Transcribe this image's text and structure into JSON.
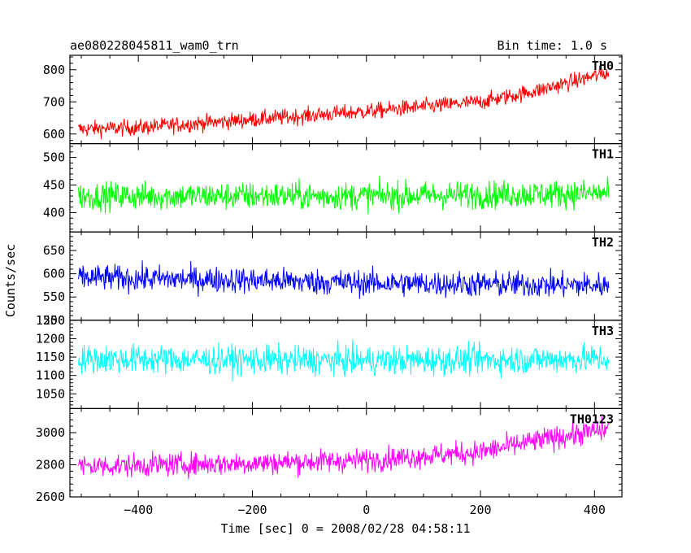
{
  "header": {
    "title": "ae080228045811_wam0_trn",
    "bin_time": "Bin time: 1.0 s"
  },
  "chart_data": {
    "type": "line",
    "xlabel": "Time [sec] 0 = 2008/02/28 04:58:11",
    "ylabel": "Counts/sec",
    "xlim": [
      -520,
      448
    ],
    "x_ticks": [
      -400,
      -200,
      0,
      200,
      400
    ],
    "x_start": -505,
    "x_end": 425,
    "bin_time": 1.0,
    "grid": false,
    "panels": [
      {
        "name": "TH0",
        "color": "#ff0000",
        "ylim": [
          570,
          845
        ],
        "yticks": [
          600,
          700,
          800
        ],
        "trend": [
          [
            -505,
            615
          ],
          [
            -400,
            620
          ],
          [
            -200,
            645
          ],
          [
            0,
            670
          ],
          [
            200,
            700
          ],
          [
            300,
            735
          ],
          [
            420,
            790
          ]
        ],
        "noise_amplitude": 45
      },
      {
        "name": "TH1",
        "color": "#00ff00",
        "ylim": [
          365,
          525
        ],
        "yticks": [
          400,
          450,
          500
        ],
        "trend": [
          [
            -505,
            430
          ],
          [
            0,
            430
          ],
          [
            420,
            435
          ]
        ],
        "noise_amplitude": 45
      },
      {
        "name": "TH2",
        "color": "#0000ff",
        "ylim": [
          500,
          690
        ],
        "yticks": [
          500,
          550,
          600,
          650
        ],
        "trend": [
          [
            -505,
            592
          ],
          [
            -200,
            586
          ],
          [
            0,
            580
          ],
          [
            420,
            575
          ]
        ],
        "noise_amplitude": 50
      },
      {
        "name": "TH3",
        "color": "#00ffff",
        "ylim": [
          1010,
          1250
        ],
        "yticks": [
          1050,
          1100,
          1150,
          1200,
          1250
        ],
        "trend": [
          [
            -505,
            1145
          ],
          [
            0,
            1140
          ],
          [
            420,
            1145
          ]
        ],
        "noise_amplitude": 70
      },
      {
        "name": "TH0123",
        "color": "#ff00ff",
        "ylim": [
          2600,
          3150
        ],
        "yticks": [
          2600,
          2800,
          3000
        ],
        "trend": [
          [
            -505,
            2790
          ],
          [
            -200,
            2810
          ],
          [
            0,
            2830
          ],
          [
            200,
            2880
          ],
          [
            300,
            2950
          ],
          [
            420,
            3020
          ]
        ],
        "noise_amplitude": 130
      }
    ]
  }
}
